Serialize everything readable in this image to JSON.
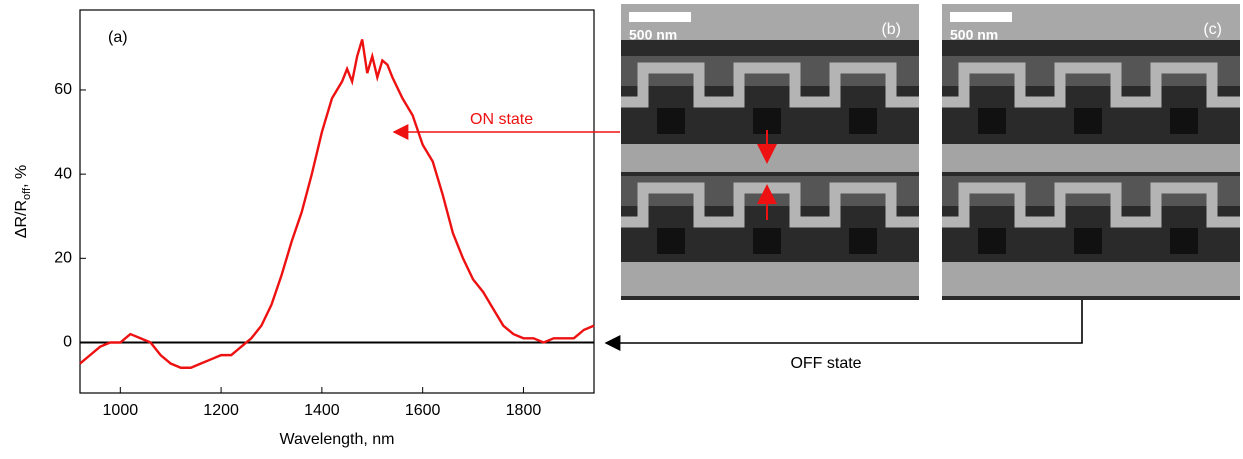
{
  "chart_data": {
    "type": "line",
    "panel_label": "(a)",
    "y_label": "ΔR/R",
    "y_label_sub": "off",
    "y_label_suffix": ", %",
    "x_label": "Wavelength, nm",
    "x": [
      920,
      940,
      960,
      980,
      1000,
      1020,
      1040,
      1060,
      1080,
      1100,
      1120,
      1140,
      1160,
      1180,
      1200,
      1220,
      1240,
      1260,
      1280,
      1300,
      1320,
      1340,
      1360,
      1380,
      1400,
      1420,
      1440,
      1450,
      1460,
      1470,
      1480,
      1490,
      1500,
      1510,
      1520,
      1530,
      1540,
      1560,
      1580,
      1600,
      1620,
      1640,
      1660,
      1680,
      1700,
      1720,
      1740,
      1760,
      1780,
      1800,
      1820,
      1840,
      1860,
      1880,
      1900,
      1920,
      1940
    ],
    "series": [
      {
        "name": "ON state",
        "color": "#ee1111",
        "values": [
          -5,
          -3,
          -1,
          0,
          0,
          2,
          1,
          0,
          -3,
          -5,
          -6,
          -6,
          -5,
          -4,
          -3,
          -3,
          -1,
          1,
          4,
          9,
          16,
          24,
          31,
          40,
          50,
          58,
          62,
          65,
          62,
          68,
          72,
          64,
          68,
          63,
          67,
          66,
          63,
          58,
          54,
          47,
          43,
          35,
          26,
          20,
          15,
          12,
          8,
          4,
          2,
          1,
          1,
          0,
          1,
          1,
          1,
          3,
          4
        ]
      }
    ],
    "reference_line": 0,
    "xlim": [
      920,
      1940
    ],
    "xticks": [
      1000,
      1200,
      1400,
      1600,
      1800
    ],
    "ylim": [
      -12,
      79
    ],
    "yticks": [
      0,
      20,
      40,
      60
    ],
    "off_label": "OFF state",
    "images": [
      {
        "label": "(b)",
        "scale_bar": "500 nm"
      },
      {
        "label": "(c)",
        "scale_bar": "500 nm"
      }
    ]
  }
}
